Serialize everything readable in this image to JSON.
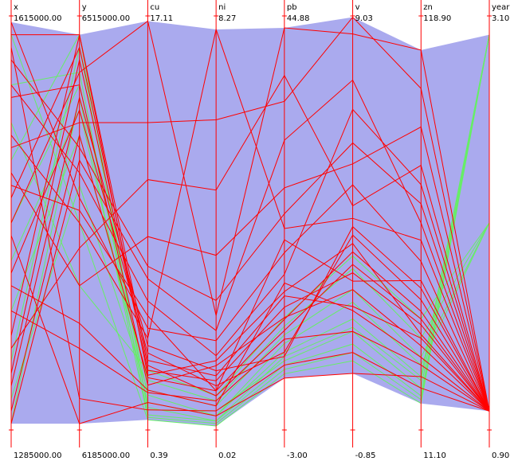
{
  "chart_data": {
    "type": "parallel",
    "envelope_color": "#aaaaee",
    "axis_color": "#ff0000",
    "dimensions": [
      {
        "name": "x",
        "range": [
          1285000,
          1615000
        ],
        "ticks": [
          {
            "value": 1285000,
            "label": "1285000.00"
          },
          {
            "value": 1615000,
            "label": "1615000.00"
          }
        ]
      },
      {
        "name": "y",
        "range": [
          6185000,
          6515000
        ],
        "ticks": [
          {
            "value": 6185000,
            "label": "6185000.00"
          },
          {
            "value": 6515000,
            "label": "6515000.00"
          }
        ]
      },
      {
        "name": "cu",
        "range": [
          0.39,
          17.11
        ],
        "ticks": [
          {
            "value": 0.39,
            "label": "0.39"
          },
          {
            "value": 17.11,
            "label": "17.11"
          }
        ]
      },
      {
        "name": "ni",
        "range": [
          0.02,
          8.27
        ],
        "ticks": [
          {
            "value": 0.02,
            "label": "0.02"
          },
          {
            "value": 8.27,
            "label": "8.27"
          }
        ]
      },
      {
        "name": "pb",
        "range": [
          -3,
          44.88
        ],
        "ticks": [
          {
            "value": -3,
            "label": "-3.00"
          },
          {
            "value": 44.88,
            "label": "44.88"
          }
        ]
      },
      {
        "name": "v",
        "range": [
          -0.85,
          9.03
        ],
        "ticks": [
          {
            "value": -0.85,
            "label": "-0.85"
          },
          {
            "value": 9.03,
            "label": "9.03"
          }
        ]
      },
      {
        "name": "zn",
        "range": [
          11.1,
          118.9
        ],
        "ticks": [
          {
            "value": 11.1,
            "label": "11.10"
          },
          {
            "value": 118.9,
            "label": "118.90"
          }
        ]
      },
      {
        "name": "year",
        "range": [
          0.9,
          3.1
        ],
        "ticks": [
          {
            "value": 0.9,
            "label": "0.90"
          },
          {
            "value": 3.1,
            "label": "3.10"
          }
        ]
      }
    ],
    "series": [
      {
        "color": "#66ee66",
        "lines": [
          [
            1420000,
            6440000,
            1.5,
            0.3,
            6.0,
            1.8,
            25.0,
            3
          ],
          [
            1560000,
            6470000,
            1.0,
            0.2,
            4.5,
            1.2,
            20.0,
            3
          ],
          [
            1310000,
            6380000,
            2.0,
            0.5,
            8.0,
            2.5,
            30.0,
            2
          ],
          [
            1500000,
            6500000,
            1.2,
            0.4,
            5.0,
            1.5,
            22.0,
            3
          ],
          [
            1380000,
            6420000,
            2.4,
            0.6,
            9.0,
            3.0,
            35.0,
            2
          ],
          [
            1600000,
            6350000,
            0.8,
            0.1,
            3.5,
            0.8,
            18.0,
            3
          ],
          [
            1450000,
            6460000,
            1.8,
            0.3,
            7.0,
            2.2,
            28.0,
            2
          ],
          [
            1340000,
            6490000,
            1.3,
            0.2,
            5.5,
            1.6,
            24.0,
            3
          ],
          [
            1530000,
            6300000,
            2.8,
            0.7,
            10.0,
            3.3,
            40.0,
            2
          ],
          [
            1290000,
            6450000,
            0.9,
            0.15,
            4.0,
            1.0,
            19.0,
            3
          ]
        ]
      },
      {
        "color": "#ff0000",
        "lines": [
          [
            1600000,
            6500000,
            3.2,
            1.1,
            12.5,
            2.1,
            35.0,
            1
          ],
          [
            1300000,
            6420000,
            2.5,
            0.8,
            9.8,
            3.4,
            42.0,
            1
          ],
          [
            1450000,
            6470000,
            16.9,
            2.3,
            43.5,
            8.6,
            110.0,
            1
          ],
          [
            1520000,
            6350000,
            4.1,
            8.0,
            20.3,
            4.2,
            60.5,
            1
          ],
          [
            1380000,
            6250000,
            1.9,
            0.6,
            7.5,
            1.5,
            28.0,
            1
          ],
          [
            1560000,
            6390000,
            5.6,
            1.5,
            15.0,
            6.8,
            75.0,
            1
          ],
          [
            1330000,
            6480000,
            2.8,
            1.0,
            11.2,
            2.9,
            38.5,
            1
          ],
          [
            1490000,
            6300000,
            8.2,
            3.5,
            25.0,
            5.5,
            90.0,
            1
          ],
          [
            1410000,
            6440000,
            3.5,
            0.9,
            6.0,
            3.8,
            45.0,
            1
          ],
          [
            1590000,
            6210000,
            1.2,
            0.4,
            4.5,
            1.0,
            22.0,
            1
          ],
          [
            1290000,
            6400000,
            6.5,
            2.0,
            30.5,
            7.5,
            65.0,
            1
          ],
          [
            1550000,
            6460000,
            2.2,
            1.3,
            10.0,
            2.5,
            33.0,
            1
          ],
          [
            1350000,
            6330000,
            10.5,
            4.8,
            38.0,
            4.5,
            80.0,
            1
          ],
          [
            1470000,
            6490000,
            3.0,
            0.7,
            8.5,
            3.1,
            40.0,
            1
          ],
          [
            1610000,
            6370000,
            4.5,
            1.8,
            17.5,
            5.0,
            55.0,
            1
          ],
          [
            1400000,
            6270000,
            2.0,
            0.5,
            14.0,
            2.0,
            30.0,
            1
          ],
          [
            1510000,
            6430000,
            12.8,
            6.2,
            35.0,
            9.0,
            100.0,
            1
          ],
          [
            1320000,
            6450000,
            3.8,
            1.2,
            5.5,
            4.0,
            48.0,
            1
          ],
          [
            1440000,
            6190000,
            1.5,
            0.3,
            3.0,
            0.5,
            25.0,
            1
          ],
          [
            1580000,
            6410000,
            7.0,
            2.6,
            22.0,
            6.0,
            70.0,
            1
          ],
          [
            1360000,
            6500000,
            2.6,
            1.4,
            13.0,
            3.6,
            36.0,
            1
          ],
          [
            1480000,
            6360000,
            5.0,
            0.8,
            19.0,
            2.7,
            50.0,
            1
          ]
        ]
      }
    ]
  }
}
